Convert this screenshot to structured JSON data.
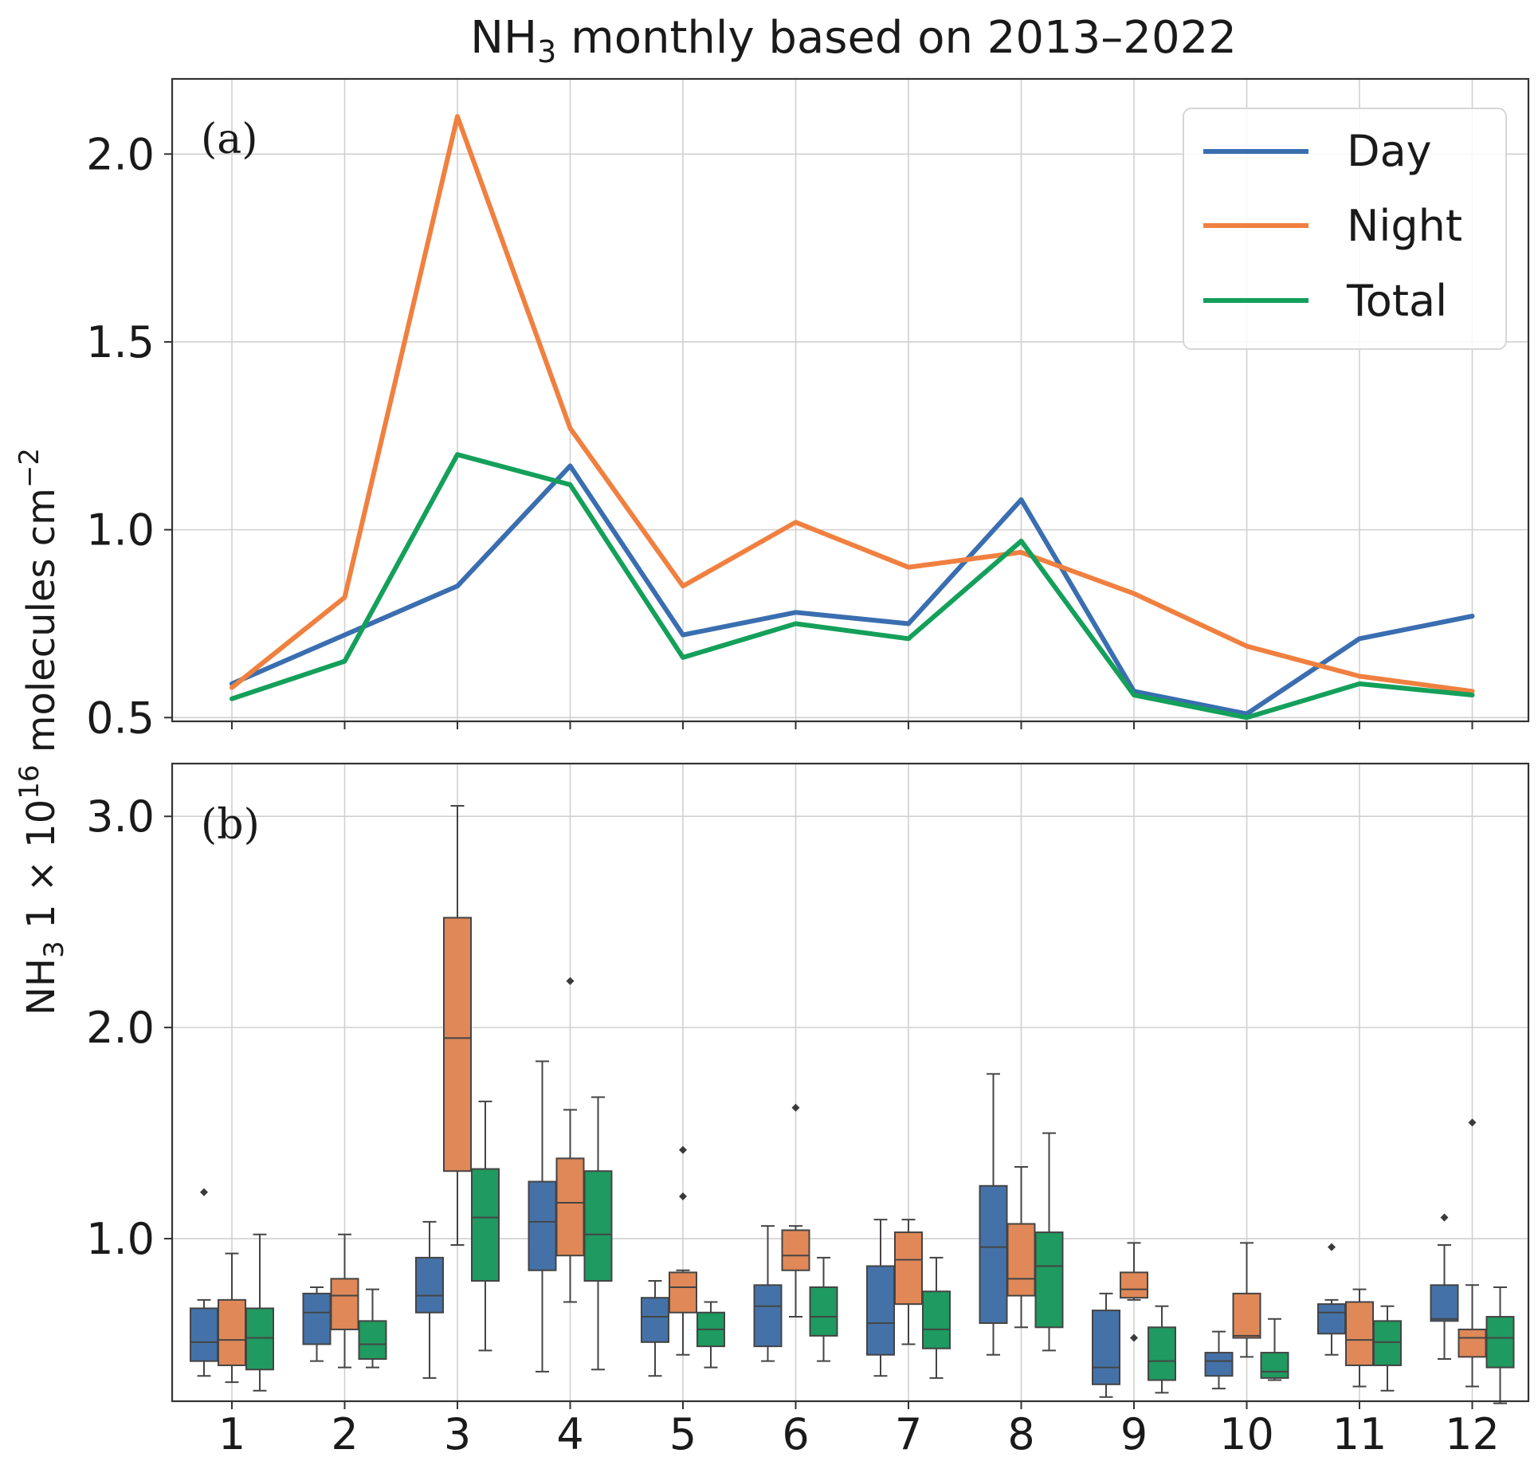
{
  "title": {
    "prefix": "NH",
    "subscript": "3",
    "suffix": " monthly based on 2013–2022"
  },
  "ylabel": {
    "prefix": "NH",
    "subscript": "3",
    "middle": " 1 × 10",
    "superscript": "16",
    "molecules": " molecules cm",
    "exponent": "−2"
  },
  "colors": {
    "day": "#3a6eb0",
    "night": "#f08040",
    "total": "#14a05a",
    "box_day": "#4472a8",
    "box_night": "#e08858",
    "box_total": "#1f9a60"
  },
  "chart_data": [
    {
      "panel_label": "(a)",
      "type": "line",
      "x": [
        1,
        2,
        3,
        4,
        5,
        6,
        7,
        8,
        9,
        10,
        11,
        12
      ],
      "xlabel": "",
      "ylabel": "NH3 1 × 10^16 molecules cm−2",
      "ylim": [
        0.49,
        2.2
      ],
      "yticks": [
        0.5,
        1.0,
        1.5,
        2.0
      ],
      "ytick_labels": [
        "0.5",
        "1.0",
        "1.5",
        "2.0"
      ],
      "grid": true,
      "legend_position": "top-right",
      "series": [
        {
          "name": "Day",
          "color_key": "day",
          "values": [
            0.59,
            0.72,
            0.85,
            1.17,
            0.72,
            0.78,
            0.75,
            1.08,
            0.57,
            0.51,
            0.71,
            0.77
          ]
        },
        {
          "name": "Night",
          "color_key": "night",
          "values": [
            0.58,
            0.82,
            2.1,
            1.27,
            0.85,
            1.02,
            0.9,
            0.94,
            0.83,
            0.69,
            0.61,
            0.57
          ]
        },
        {
          "name": "Total",
          "color_key": "total",
          "values": [
            0.55,
            0.65,
            1.2,
            1.12,
            0.66,
            0.75,
            0.71,
            0.97,
            0.56,
            0.5,
            0.59,
            0.56
          ]
        }
      ]
    },
    {
      "panel_label": "(b)",
      "type": "box",
      "categories": [
        "1",
        "2",
        "3",
        "4",
        "5",
        "6",
        "7",
        "8",
        "9",
        "10",
        "11",
        "12"
      ],
      "ylim": [
        0.23,
        3.25
      ],
      "yticks": [
        1.0,
        2.0,
        3.0
      ],
      "ytick_labels": [
        "1.0",
        "2.0",
        "3.0"
      ],
      "grid": true,
      "series": [
        {
          "name": "Day",
          "color_key": "box_day",
          "boxes": [
            {
              "whislo": 0.35,
              "q1": 0.42,
              "med": 0.51,
              "q3": 0.67,
              "whishi": 0.71,
              "fliers": [
                1.22
              ]
            },
            {
              "whislo": 0.42,
              "q1": 0.5,
              "med": 0.65,
              "q3": 0.74,
              "whishi": 0.77,
              "fliers": []
            },
            {
              "whislo": 0.34,
              "q1": 0.65,
              "med": 0.73,
              "q3": 0.91,
              "whishi": 1.08,
              "fliers": []
            },
            {
              "whislo": 0.37,
              "q1": 0.85,
              "med": 1.08,
              "q3": 1.27,
              "whishi": 1.84,
              "fliers": []
            },
            {
              "whislo": 0.35,
              "q1": 0.51,
              "med": 0.63,
              "q3": 0.72,
              "whishi": 0.8,
              "fliers": []
            },
            {
              "whislo": 0.42,
              "q1": 0.49,
              "med": 0.68,
              "q3": 0.78,
              "whishi": 1.06,
              "fliers": []
            },
            {
              "whislo": 0.35,
              "q1": 0.45,
              "med": 0.6,
              "q3": 0.87,
              "whishi": 1.09,
              "fliers": []
            },
            {
              "whislo": 0.45,
              "q1": 0.6,
              "med": 0.96,
              "q3": 1.25,
              "whishi": 1.78,
              "fliers": []
            },
            {
              "whislo": 0.25,
              "q1": 0.31,
              "med": 0.39,
              "q3": 0.66,
              "whishi": 0.74,
              "fliers": []
            },
            {
              "whislo": 0.29,
              "q1": 0.35,
              "med": 0.42,
              "q3": 0.46,
              "whishi": 0.56,
              "fliers": []
            },
            {
              "whislo": 0.45,
              "q1": 0.55,
              "med": 0.65,
              "q3": 0.69,
              "whishi": 0.71,
              "fliers": [
                0.96
              ]
            },
            {
              "whislo": 0.43,
              "q1": 0.61,
              "med": 0.62,
              "q3": 0.78,
              "whishi": 0.97,
              "fliers": [
                1.1
              ]
            }
          ]
        },
        {
          "name": "Night",
          "color_key": "box_night",
          "boxes": [
            {
              "whislo": 0.32,
              "q1": 0.4,
              "med": 0.52,
              "q3": 0.71,
              "whishi": 0.93,
              "fliers": []
            },
            {
              "whislo": 0.39,
              "q1": 0.57,
              "med": 0.73,
              "q3": 0.81,
              "whishi": 1.02,
              "fliers": []
            },
            {
              "whislo": 0.97,
              "q1": 1.32,
              "med": 1.95,
              "q3": 2.52,
              "whishi": 3.05,
              "fliers": []
            },
            {
              "whislo": 0.7,
              "q1": 0.92,
              "med": 1.17,
              "q3": 1.38,
              "whishi": 1.61,
              "fliers": [
                2.22
              ]
            },
            {
              "whislo": 0.45,
              "q1": 0.65,
              "med": 0.77,
              "q3": 0.84,
              "whishi": 0.85,
              "fliers": [
                1.42,
                1.2
              ]
            },
            {
              "whislo": 0.63,
              "q1": 0.85,
              "med": 0.92,
              "q3": 1.04,
              "whishi": 1.06,
              "fliers": [
                1.62
              ]
            },
            {
              "whislo": 0.5,
              "q1": 0.69,
              "med": 0.9,
              "q3": 1.03,
              "whishi": 1.09,
              "fliers": []
            },
            {
              "whislo": 0.58,
              "q1": 0.73,
              "med": 0.81,
              "q3": 1.07,
              "whishi": 1.34,
              "fliers": []
            },
            {
              "whislo": 0.71,
              "q1": 0.72,
              "med": 0.76,
              "q3": 0.84,
              "whishi": 0.98,
              "fliers": [
                0.53
              ]
            },
            {
              "whislo": 0.44,
              "q1": 0.53,
              "med": 0.54,
              "q3": 0.74,
              "whishi": 0.98,
              "fliers": []
            },
            {
              "whislo": 0.3,
              "q1": 0.4,
              "med": 0.52,
              "q3": 0.7,
              "whishi": 0.76,
              "fliers": []
            },
            {
              "whislo": 0.3,
              "q1": 0.44,
              "med": 0.53,
              "q3": 0.57,
              "whishi": 0.78,
              "fliers": [
                1.55
              ]
            }
          ]
        },
        {
          "name": "Total",
          "color_key": "box_total",
          "boxes": [
            {
              "whislo": 0.28,
              "q1": 0.38,
              "med": 0.53,
              "q3": 0.67,
              "whishi": 1.02,
              "fliers": []
            },
            {
              "whislo": 0.39,
              "q1": 0.43,
              "med": 0.5,
              "q3": 0.61,
              "whishi": 0.76,
              "fliers": []
            },
            {
              "whislo": 0.47,
              "q1": 0.8,
              "med": 1.1,
              "q3": 1.33,
              "whishi": 1.65,
              "fliers": []
            },
            {
              "whislo": 0.38,
              "q1": 0.8,
              "med": 1.02,
              "q3": 1.32,
              "whishi": 1.67,
              "fliers": []
            },
            {
              "whislo": 0.39,
              "q1": 0.49,
              "med": 0.57,
              "q3": 0.65,
              "whishi": 0.7,
              "fliers": []
            },
            {
              "whislo": 0.42,
              "q1": 0.54,
              "med": 0.63,
              "q3": 0.77,
              "whishi": 0.91,
              "fliers": []
            },
            {
              "whislo": 0.34,
              "q1": 0.48,
              "med": 0.57,
              "q3": 0.75,
              "whishi": 0.91,
              "fliers": []
            },
            {
              "whislo": 0.47,
              "q1": 0.58,
              "med": 0.87,
              "q3": 1.03,
              "whishi": 1.5,
              "fliers": []
            },
            {
              "whislo": 0.27,
              "q1": 0.33,
              "med": 0.42,
              "q3": 0.58,
              "whishi": 0.68,
              "fliers": []
            },
            {
              "whislo": 0.33,
              "q1": 0.34,
              "med": 0.37,
              "q3": 0.46,
              "whishi": 0.62,
              "fliers": []
            },
            {
              "whislo": 0.28,
              "q1": 0.4,
              "med": 0.51,
              "q3": 0.61,
              "whishi": 0.68,
              "fliers": []
            },
            {
              "whislo": 0.22,
              "q1": 0.39,
              "med": 0.53,
              "q3": 0.63,
              "whishi": 0.77,
              "fliers": []
            }
          ]
        }
      ]
    }
  ]
}
